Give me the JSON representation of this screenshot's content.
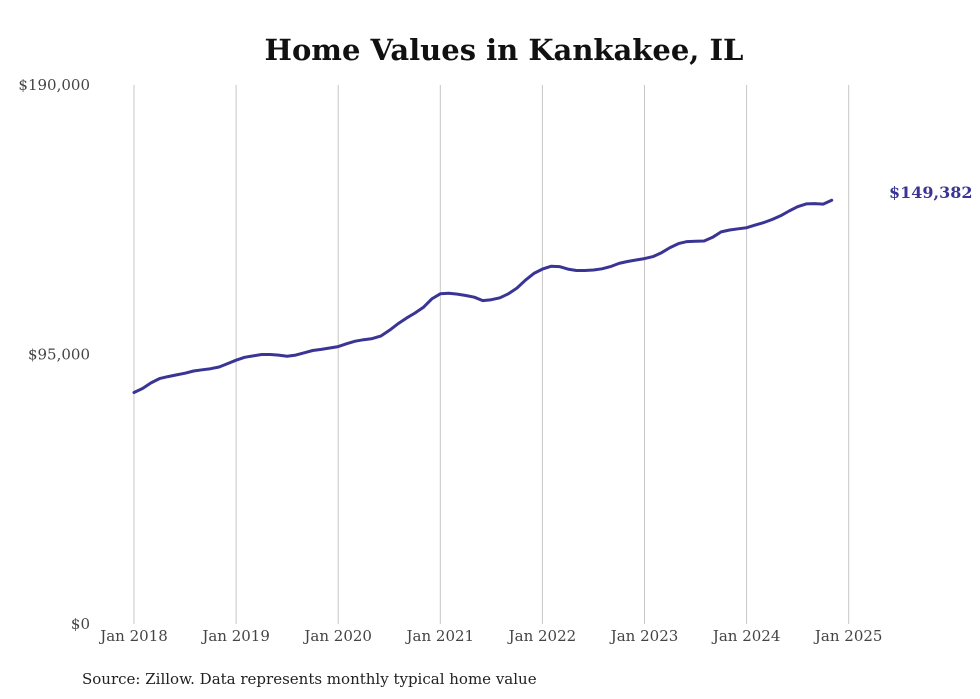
{
  "chart_data": {
    "type": "line",
    "title": "Home Values in Kankakee, IL",
    "xlabel": "",
    "ylabel": "",
    "ylim": [
      0,
      190000
    ],
    "yticks": [
      {
        "value": 0,
        "label": "$0"
      },
      {
        "value": 95000,
        "label": "$95,000"
      },
      {
        "value": 190000,
        "label": "$190,000"
      }
    ],
    "xticks": [
      "Jan 2018",
      "Jan 2019",
      "Jan 2020",
      "Jan 2021",
      "Jan 2022",
      "Jan 2023",
      "Jan 2024",
      "Jan 2025"
    ],
    "grid": "vertical",
    "line_color": "#3a3494",
    "end_label": "$149,382",
    "source": "Source: Zillow. Data represents monthly typical home value",
    "x_start": "Jan 2018",
    "x_end": "Apr 2025",
    "series": [
      {
        "values": [
          81600,
          83000,
          85000,
          86500,
          87200,
          87800,
          88400,
          89200,
          89600,
          90000,
          90600,
          91800,
          93000,
          94000,
          94500,
          95000,
          95000,
          94800,
          94400,
          94800,
          95600,
          96400,
          96800,
          97300,
          97800,
          98800,
          99700,
          100200,
          100600,
          101500,
          103500,
          105800,
          107800,
          109600,
          111600,
          114600,
          116400,
          116600,
          116300,
          115800,
          115200,
          114000,
          114300,
          115000,
          116400,
          118400,
          121200,
          123600,
          125100,
          126100,
          126000,
          125100,
          124600,
          124600,
          124800,
          125200,
          126000,
          127100,
          127800,
          128300,
          128800,
          129500,
          130900,
          132700,
          134100,
          134800,
          134900,
          135000,
          136300,
          138200,
          138900,
          139300,
          139700,
          140600,
          141500,
          142600,
          143900,
          145600,
          147100,
          148100,
          148200,
          148000
        ],
        "last": 149382
      }
    ]
  }
}
